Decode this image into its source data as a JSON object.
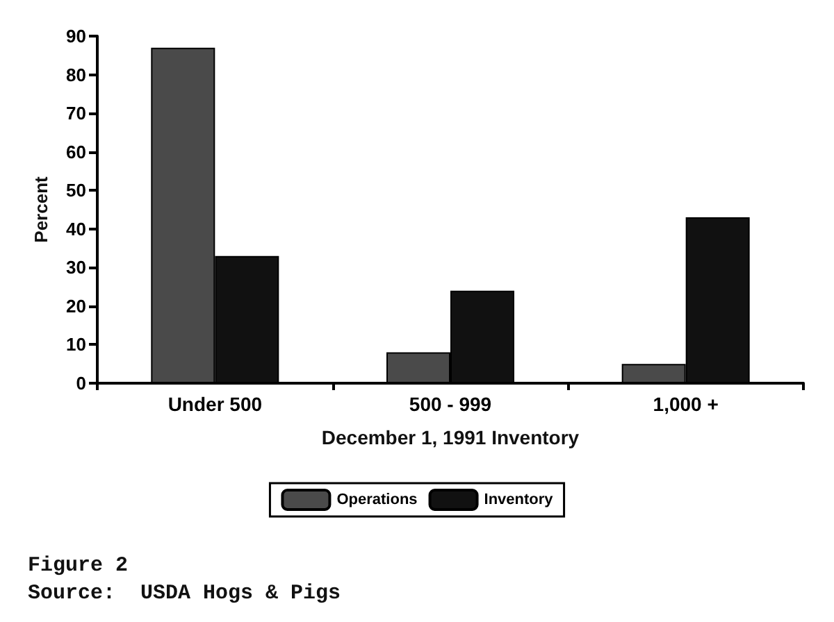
{
  "chart_data": {
    "type": "bar",
    "categories": [
      "Under 500",
      "500 - 999",
      "1,000 +"
    ],
    "series": [
      {
        "name": "Operations",
        "color": "#4a4a4a",
        "values": [
          87,
          8,
          5
        ]
      },
      {
        "name": "Inventory",
        "color": "#111111",
        "values": [
          33,
          24,
          43
        ]
      }
    ],
    "xlabel": "December 1, 1991 Inventory",
    "ylabel": "Percent",
    "ylim": [
      0,
      90
    ],
    "yticks": [
      0,
      10,
      20,
      30,
      40,
      50,
      60,
      70,
      80,
      90
    ],
    "legend": "bottom",
    "annotations": [
      "Figure 2",
      "Source:  USDA Hogs & Pigs"
    ]
  }
}
